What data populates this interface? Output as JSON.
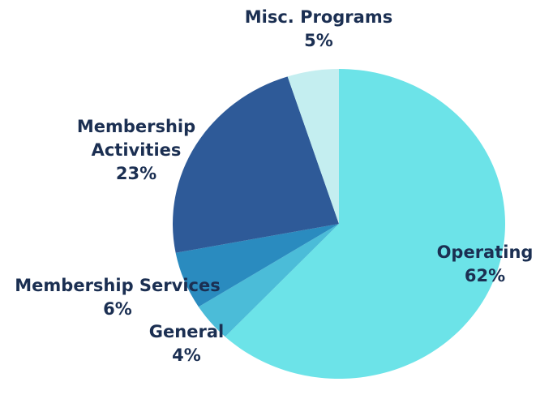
{
  "chart_data": {
    "type": "pie",
    "categories": [
      "Operating",
      "General",
      "Membership Services",
      "Membership Activities",
      "Misc. Programs"
    ],
    "values": [
      62,
      4,
      6,
      23,
      5
    ],
    "value_labels": [
      "62%",
      "4%",
      "6%",
      "23%",
      "5%"
    ],
    "colors": [
      "#6ce3e8",
      "#4bbcd8",
      "#2a8bbf",
      "#2e5a98",
      "#c4eef0"
    ]
  }
}
